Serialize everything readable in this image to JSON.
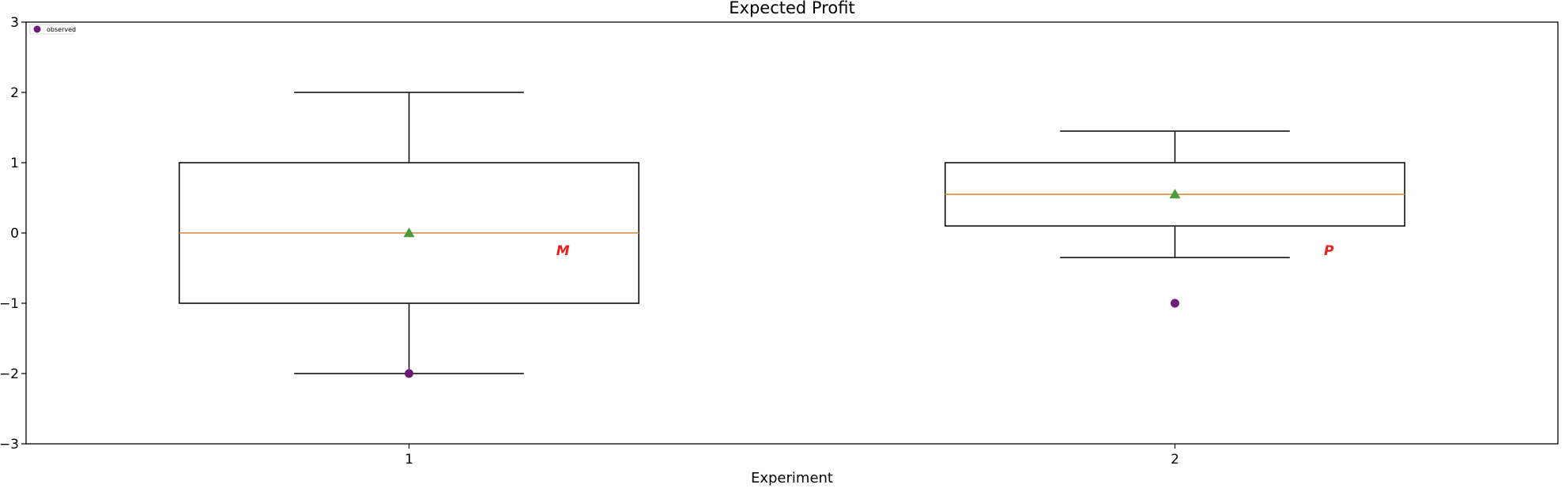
{
  "chart_data": {
    "type": "box",
    "title": "Expected Profit",
    "xlabel": "Experiment",
    "ylabel": "",
    "ylim": [
      -3,
      3
    ],
    "yticks": [
      -3,
      -2,
      -1,
      0,
      1,
      2,
      3
    ],
    "categories": [
      "1",
      "2"
    ],
    "boxes": [
      {
        "category": "1",
        "whisker_low": -2,
        "q1": -1,
        "median": 0,
        "q3": 1,
        "whisker_high": 2,
        "mean": 0,
        "observed": -2,
        "marker_label": "M"
      },
      {
        "category": "2",
        "whisker_low": -0.35,
        "q1": 0.1,
        "median": 0.55,
        "q3": 1.0,
        "whisker_high": 1.45,
        "mean": 0.55,
        "observed": -1,
        "marker_label": "P"
      }
    ],
    "legend": {
      "entries": [
        "observed"
      ],
      "placement": "top-left"
    },
    "grid": false,
    "colors": {
      "box": "#000000",
      "median": "#e3994f",
      "mean": "#4a9a3a",
      "observed": "#6b1a75",
      "marker_label": "#e8211c"
    }
  }
}
